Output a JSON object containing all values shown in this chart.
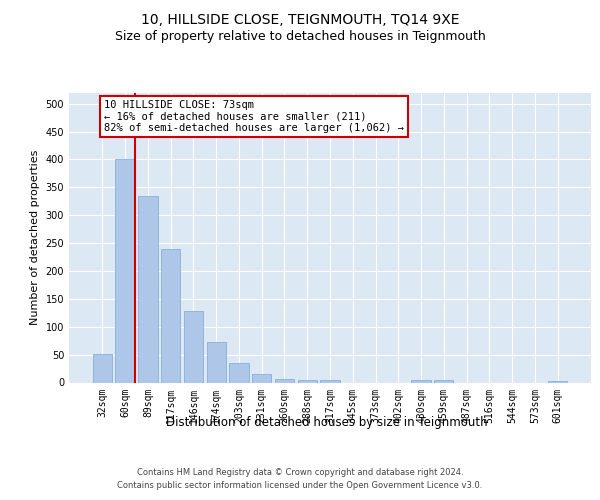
{
  "title": "10, HILLSIDE CLOSE, TEIGNMOUTH, TQ14 9XE",
  "subtitle": "Size of property relative to detached houses in Teignmouth",
  "xlabel": "Distribution of detached houses by size in Teignmouth",
  "ylabel": "Number of detached properties",
  "categories": [
    "32sqm",
    "60sqm",
    "89sqm",
    "117sqm",
    "146sqm",
    "174sqm",
    "203sqm",
    "231sqm",
    "260sqm",
    "288sqm",
    "317sqm",
    "345sqm",
    "373sqm",
    "402sqm",
    "430sqm",
    "459sqm",
    "487sqm",
    "516sqm",
    "544sqm",
    "573sqm",
    "601sqm"
  ],
  "values": [
    52,
    400,
    335,
    240,
    128,
    72,
    35,
    15,
    7,
    5,
    5,
    0,
    0,
    0,
    5,
    5,
    0,
    0,
    0,
    0,
    3
  ],
  "bar_color": "#aec6e8",
  "bar_edge_color": "#7aaad0",
  "vline_color": "#cc0000",
  "vline_x": 1.425,
  "annotation_text": "10 HILLSIDE CLOSE: 73sqm\n← 16% of detached houses are smaller (211)\n82% of semi-detached houses are larger (1,062) →",
  "annotation_box_facecolor": "#ffffff",
  "annotation_box_edgecolor": "#cc0000",
  "ylim": [
    0,
    520
  ],
  "yticks": [
    0,
    50,
    100,
    150,
    200,
    250,
    300,
    350,
    400,
    450,
    500
  ],
  "plot_bg_color": "#dce9f5",
  "footer_line1": "Contains HM Land Registry data © Crown copyright and database right 2024.",
  "footer_line2": "Contains public sector information licensed under the Open Government Licence v3.0.",
  "title_fontsize": 10,
  "subtitle_fontsize": 9,
  "ylabel_fontsize": 8,
  "xlabel_fontsize": 8.5,
  "tick_fontsize": 7,
  "footer_fontsize": 6,
  "annotation_fontsize": 7.5
}
